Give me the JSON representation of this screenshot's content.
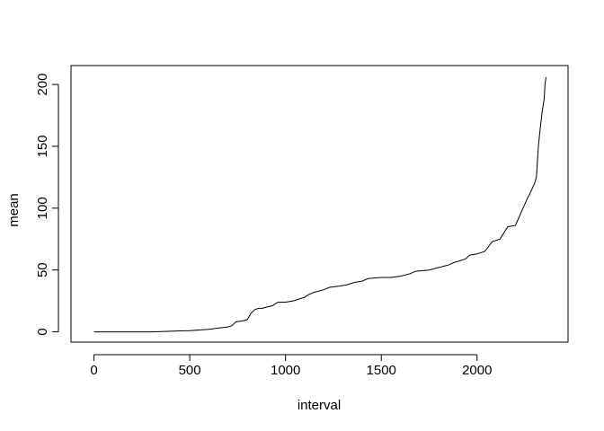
{
  "chart_data": {
    "type": "line",
    "title": "",
    "xlabel": "interval",
    "ylabel": "mean",
    "xlim": [
      -120,
      2475
    ],
    "ylim": [
      -8.3,
      215.3
    ],
    "x_ticks": [
      0,
      500,
      1000,
      1500,
      2000
    ],
    "y_ticks": [
      0,
      50,
      100,
      150,
      200
    ],
    "grid": false,
    "legend": "none",
    "line_color": "#000000",
    "points": [
      [
        0,
        0
      ],
      [
        100,
        0
      ],
      [
        200,
        0
      ],
      [
        300,
        0
      ],
      [
        350,
        0.3
      ],
      [
        400,
        0.5
      ],
      [
        450,
        0.8
      ],
      [
        500,
        1
      ],
      [
        550,
        1.5
      ],
      [
        600,
        2
      ],
      [
        650,
        3
      ],
      [
        700,
        4
      ],
      [
        720,
        5
      ],
      [
        740,
        8
      ],
      [
        780,
        9
      ],
      [
        800,
        10
      ],
      [
        820,
        15
      ],
      [
        840,
        18
      ],
      [
        860,
        19
      ],
      [
        880,
        19
      ],
      [
        900,
        20
      ],
      [
        930,
        21
      ],
      [
        960,
        24
      ],
      [
        1000,
        24
      ],
      [
        1040,
        25
      ],
      [
        1080,
        27
      ],
      [
        1100,
        28
      ],
      [
        1120,
        30
      ],
      [
        1150,
        32
      ],
      [
        1200,
        34
      ],
      [
        1230,
        36
      ],
      [
        1280,
        37
      ],
      [
        1320,
        38
      ],
      [
        1360,
        40
      ],
      [
        1400,
        41
      ],
      [
        1430,
        43
      ],
      [
        1500,
        44
      ],
      [
        1550,
        44
      ],
      [
        1600,
        45
      ],
      [
        1650,
        47
      ],
      [
        1680,
        49
      ],
      [
        1750,
        50
      ],
      [
        1800,
        52
      ],
      [
        1850,
        54
      ],
      [
        1880,
        56
      ],
      [
        1900,
        57
      ],
      [
        1940,
        59
      ],
      [
        1960,
        62
      ],
      [
        2000,
        63
      ],
      [
        2040,
        65
      ],
      [
        2060,
        69
      ],
      [
        2080,
        73
      ],
      [
        2120,
        75
      ],
      [
        2140,
        80
      ],
      [
        2160,
        85
      ],
      [
        2200,
        86
      ],
      [
        2220,
        93
      ],
      [
        2240,
        100
      ],
      [
        2260,
        107
      ],
      [
        2280,
        113
      ],
      [
        2300,
        120
      ],
      [
        2310,
        125
      ],
      [
        2320,
        150
      ],
      [
        2330,
        165
      ],
      [
        2340,
        178
      ],
      [
        2350,
        188
      ],
      [
        2355,
        200
      ],
      [
        2360,
        206
      ]
    ]
  }
}
